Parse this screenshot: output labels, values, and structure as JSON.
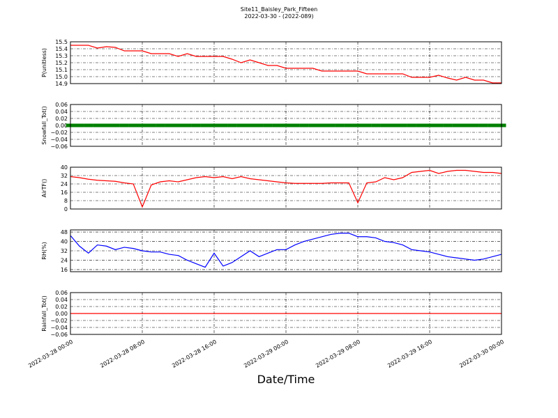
{
  "chart_data": {
    "type": "line",
    "title": "Site11_Baisley_Park_Fifteen",
    "subtitle": "2022-03-30 - (2022-089)",
    "xlabel": "Date/Time",
    "grid": true,
    "x": [
      "2022-03-28 00:00",
      "2022-03-28 01:00",
      "2022-03-28 02:00",
      "2022-03-28 03:00",
      "2022-03-28 04:00",
      "2022-03-28 05:00",
      "2022-03-28 06:00",
      "2022-03-28 07:00",
      "2022-03-28 08:00",
      "2022-03-28 09:00",
      "2022-03-28 10:00",
      "2022-03-28 11:00",
      "2022-03-28 12:00",
      "2022-03-28 13:00",
      "2022-03-28 14:00",
      "2022-03-28 15:00",
      "2022-03-28 16:00",
      "2022-03-28 17:00",
      "2022-03-28 18:00",
      "2022-03-28 19:00",
      "2022-03-28 20:00",
      "2022-03-28 21:00",
      "2022-03-28 22:00",
      "2022-03-28 23:00",
      "2022-03-29 00:00",
      "2022-03-29 01:00",
      "2022-03-29 02:00",
      "2022-03-29 03:00",
      "2022-03-29 04:00",
      "2022-03-29 05:00",
      "2022-03-29 06:00",
      "2022-03-29 07:00",
      "2022-03-29 08:00",
      "2022-03-29 09:00",
      "2022-03-29 10:00",
      "2022-03-29 11:00",
      "2022-03-29 12:00",
      "2022-03-29 13:00",
      "2022-03-29 14:00",
      "2022-03-29 15:00",
      "2022-03-29 16:00",
      "2022-03-29 17:00",
      "2022-03-29 18:00",
      "2022-03-29 19:00",
      "2022-03-29 20:00",
      "2022-03-29 21:00",
      "2022-03-29 22:00",
      "2022-03-29 23:00",
      "2022-03-30 00:00"
    ],
    "xlim": [
      "2022-03-28 00:00",
      "2022-03-30 00:00"
    ],
    "xticks": [
      "2022-03-28 00:00",
      "2022-03-28 08:00",
      "2022-03-28 16:00",
      "2022-03-29 00:00",
      "2022-03-29 08:00",
      "2022-03-29 16:00",
      "2022-03-30 00:00"
    ],
    "panels": [
      {
        "ylabel": "P(unitless)",
        "ylim": [
          14.9,
          15.5
        ],
        "yticks": [
          14.9,
          {
            "value": 15,
            "label": "15.0"
          },
          15.1,
          15.2,
          15.3,
          15.4,
          15.5
        ],
        "series": [
          {
            "color": "#ff0000",
            "style": "line",
            "values": [
              15.45,
              15.45,
              15.45,
              15.41,
              15.43,
              15.42,
              15.37,
              15.37,
              15.37,
              15.33,
              15.33,
              15.33,
              15.29,
              15.33,
              15.29,
              15.29,
              15.29,
              15.29,
              15.25,
              15.2,
              15.24,
              15.2,
              15.16,
              15.16,
              15.12,
              15.12,
              15.12,
              15.12,
              15.08,
              15.08,
              15.08,
              15.08,
              15.08,
              15.04,
              15.04,
              15.04,
              15.04,
              15.04,
              14.99,
              14.99,
              14.99,
              15.02,
              14.98,
              14.95,
              14.99,
              14.95,
              14.95,
              14.91,
              14.91
            ]
          }
        ]
      },
      {
        "ylabel": "Snowfall_Tot()",
        "ylim": [
          -0.06,
          0.06
        ],
        "yticks": [
          {
            "value": -0.06,
            "label": "−0.06"
          },
          {
            "value": -0.04,
            "label": "−0.04"
          },
          {
            "value": -0.02,
            "label": "−0.02"
          },
          {
            "value": 0,
            "label": "0.00"
          },
          0.02,
          0.04,
          0.06
        ],
        "series": [
          {
            "color": "#008000",
            "style": "dots",
            "values": [
              0,
              0,
              0,
              0,
              0,
              0,
              0,
              0,
              0,
              0,
              0,
              0,
              0,
              0,
              0,
              0,
              0,
              0,
              0,
              0,
              0,
              0,
              0,
              0,
              0,
              0,
              0,
              0,
              0,
              0,
              0,
              0,
              0,
              0,
              0,
              0,
              0,
              0,
              0,
              0,
              0,
              0,
              0,
              0,
              0,
              0,
              0,
              0,
              0
            ]
          }
        ]
      },
      {
        "ylabel": "AirTF()",
        "ylim": [
          0,
          40
        ],
        "yticks": [
          0,
          8,
          16,
          24,
          32,
          40
        ],
        "series": [
          {
            "color": "#ff0000",
            "style": "line",
            "values": [
              31,
              30,
              28.5,
              27.5,
              27,
              26.5,
              25,
              24,
              2,
              23,
              26,
              27,
              26,
              28,
              30,
              31,
              30,
              31,
              29,
              31,
              29,
              28,
              27,
              26,
              25,
              24.5,
              24.5,
              24.5,
              24.5,
              25,
              25,
              25,
              6,
              25,
              26,
              30,
              28,
              30,
              35,
              36,
              37,
              34,
              36,
              37,
              37,
              36,
              35,
              35,
              34
            ]
          }
        ]
      },
      {
        "ylabel": "RH(%)",
        "ylim": [
          14.2,
          49.8
        ],
        "yticks": [
          16,
          24,
          32,
          40,
          48
        ],
        "series": [
          {
            "color": "#0000ff",
            "style": "line",
            "values": [
              45,
              36,
              30,
              37,
              36,
              33,
              35,
              34,
              32,
              31,
              31,
              29,
              28,
              24,
              21,
              18,
              30,
              19,
              22,
              27,
              32,
              27,
              30,
              33,
              33,
              37,
              40,
              42,
              44,
              46,
              47,
              47,
              44,
              44,
              43,
              40,
              39,
              37,
              33,
              32,
              31,
              29,
              27,
              26,
              25,
              24,
              25,
              27,
              29
            ]
          }
        ]
      },
      {
        "ylabel": "Rainfall_Tot()",
        "ylim": [
          -0.06,
          0.06
        ],
        "yticks": [
          {
            "value": -0.06,
            "label": "−0.06"
          },
          {
            "value": -0.04,
            "label": "−0.04"
          },
          {
            "value": -0.02,
            "label": "−0.02"
          },
          {
            "value": 0,
            "label": "0.00"
          },
          0.02,
          0.04,
          0.06
        ],
        "series": [
          {
            "color": "#ff0000",
            "style": "line",
            "values": [
              0,
              0,
              0,
              0,
              0,
              0,
              0,
              0,
              0,
              0,
              0,
              0,
              0,
              0,
              0,
              0,
              0,
              0,
              0,
              0,
              0,
              0,
              0,
              0,
              0,
              0,
              0,
              0,
              0,
              0,
              0,
              0,
              0,
              0,
              0,
              0,
              0,
              0,
              0,
              0,
              0,
              0,
              0,
              0,
              0,
              0,
              0,
              0,
              0
            ]
          }
        ]
      }
    ]
  }
}
